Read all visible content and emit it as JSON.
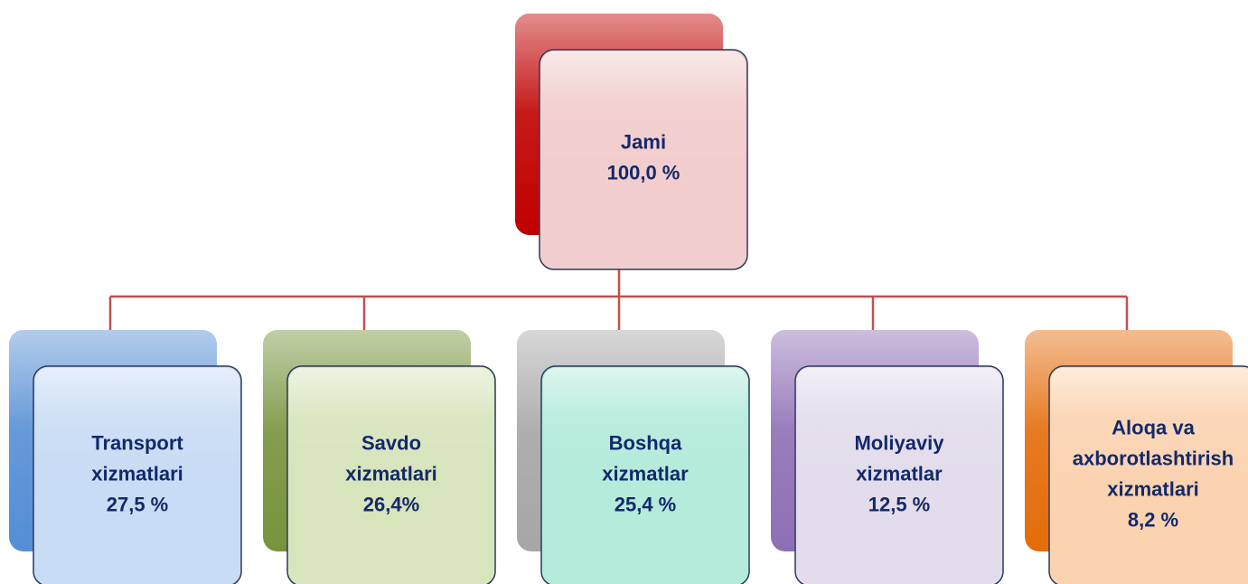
{
  "root": {
    "lines": [
      "Jami",
      "100,0 %"
    ]
  },
  "children": [
    {
      "lines": [
        "Transport",
        "xizmatlari",
        "27,5 %"
      ]
    },
    {
      "lines": [
        "Savdo",
        "xizmatlari",
        "26,4%"
      ]
    },
    {
      "lines": [
        "Boshqa",
        "xizmatlar",
        "25,4 %"
      ]
    },
    {
      "lines": [
        "Moliyaviy",
        "xizmatlar",
        "12,5 %"
      ]
    },
    {
      "lines": [
        "Aloqa va",
        "axborotlashtirish",
        "xizmatlari",
        "8,2 %"
      ]
    }
  ]
}
